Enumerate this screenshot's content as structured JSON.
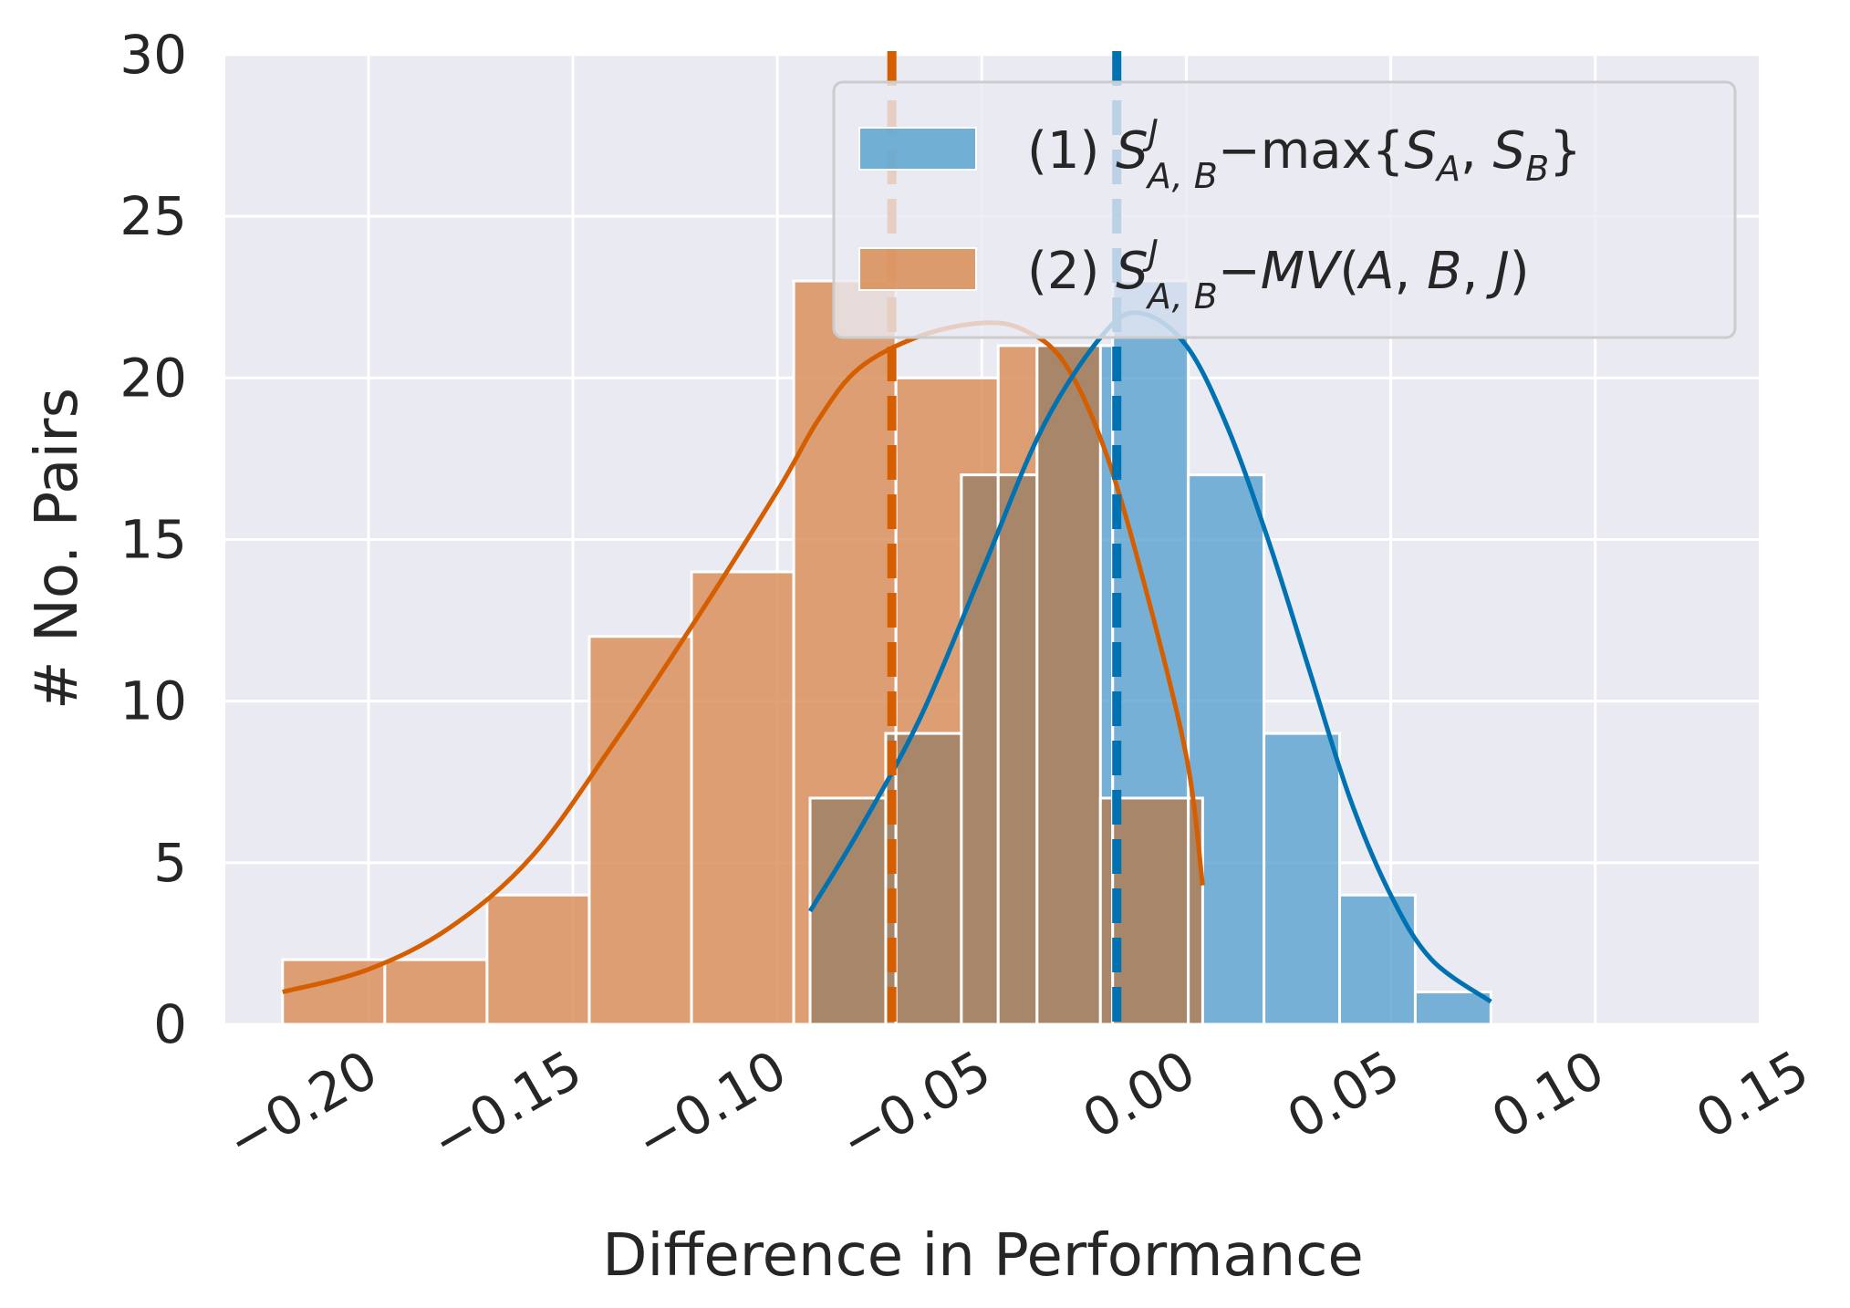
{
  "colors": {
    "plot_bg": "#eaeaf2",
    "grid": "#ffffff",
    "series1": "#0072b2",
    "series1_fill": "#5da4cf",
    "series2": "#d55e00",
    "series2_fill": "#d98d55",
    "overlap_fill": "#a8866a",
    "text": "#262626"
  },
  "chart_data": {
    "type": "histogram",
    "xlabel": "Difference in Performance",
    "ylabel": "# No. Pairs",
    "xlim": [
      -0.235,
      0.14
    ],
    "ylim": [
      0,
      30
    ],
    "xticks": [
      -0.2,
      -0.15,
      -0.1,
      -0.05,
      0.0,
      0.05,
      0.1,
      0.15
    ],
    "xtick_labels": [
      "−0.20",
      "−0.15",
      "−0.10",
      "−0.05",
      "0.00",
      "0.05",
      "0.10",
      "0.15"
    ],
    "yticks": [
      0,
      5,
      10,
      15,
      20,
      25,
      30
    ],
    "ytick_labels": [
      "0",
      "5",
      "10",
      "15",
      "20",
      "25",
      "30"
    ],
    "legend_position": "upper right",
    "grid": true,
    "series": [
      {
        "name": "(1) S^J_{A,B} − max{S_A, S_B}",
        "legend": {
          "number": "(1)",
          "main": "S",
          "sup": "J",
          "sub": "A, B",
          "rest": [
            {
              "t": "−max{",
              "style": "normal"
            },
            {
              "t": "S",
              "style": "italic"
            },
            {
              "t": "A",
              "style": "sub"
            },
            {
              "t": ", ",
              "style": "normal"
            },
            {
              "t": "S",
              "style": "italic"
            },
            {
              "t": "B",
              "style": "sub"
            },
            {
              "t": "}",
              "style": "normal"
            }
          ]
        },
        "bins": [
          {
            "x0": -0.092,
            "x1": -0.0735,
            "count": 7
          },
          {
            "x0": -0.0735,
            "x1": -0.055,
            "count": 9
          },
          {
            "x0": -0.055,
            "x1": -0.0365,
            "count": 17
          },
          {
            "x0": -0.0365,
            "x1": -0.018,
            "count": 21
          },
          {
            "x0": -0.018,
            "x1": 0.0005,
            "count": 23
          },
          {
            "x0": 0.0005,
            "x1": 0.019,
            "count": 17
          },
          {
            "x0": 0.019,
            "x1": 0.0375,
            "count": 9
          },
          {
            "x0": 0.0375,
            "x1": 0.056,
            "count": 4
          },
          {
            "x0": 0.056,
            "x1": 0.0745,
            "count": 1
          }
        ],
        "kde": [
          {
            "x": -0.092,
            "y": 3.5
          },
          {
            "x": -0.08,
            "y": 6.0
          },
          {
            "x": -0.065,
            "y": 9.5
          },
          {
            "x": -0.05,
            "y": 14.0
          },
          {
            "x": -0.035,
            "y": 18.5
          },
          {
            "x": -0.02,
            "y": 21.4
          },
          {
            "x": -0.011,
            "y": 22.0
          },
          {
            "x": 0.0,
            "y": 21.0
          },
          {
            "x": 0.01,
            "y": 18.5
          },
          {
            "x": 0.02,
            "y": 15.0
          },
          {
            "x": 0.03,
            "y": 11.0
          },
          {
            "x": 0.04,
            "y": 7.0
          },
          {
            "x": 0.05,
            "y": 4.0
          },
          {
            "x": 0.06,
            "y": 2.0
          },
          {
            "x": 0.0745,
            "y": 0.7
          }
        ],
        "mean": -0.017
      },
      {
        "name": "(2) S^J_{A,B} − MV(A,B,J)",
        "legend": {
          "number": "(2)",
          "main": "S",
          "sup": "J",
          "sub": "A, B",
          "rest": [
            {
              "t": "−",
              "style": "normal"
            },
            {
              "t": "MV",
              "style": "italic"
            },
            {
              "t": "(",
              "style": "normal"
            },
            {
              "t": "A",
              "style": "italic"
            },
            {
              "t": ", ",
              "style": "normal"
            },
            {
              "t": "B",
              "style": "italic"
            },
            {
              "t": ", ",
              "style": "normal"
            },
            {
              "t": "J",
              "style": "italic"
            },
            {
              "t": ")",
              "style": "normal"
            }
          ]
        },
        "bins": [
          {
            "x0": -0.221,
            "x1": -0.196,
            "count": 2
          },
          {
            "x0": -0.196,
            "x1": -0.171,
            "count": 2
          },
          {
            "x0": -0.171,
            "x1": -0.146,
            "count": 4
          },
          {
            "x0": -0.146,
            "x1": -0.121,
            "count": 12
          },
          {
            "x0": -0.121,
            "x1": -0.096,
            "count": 14
          },
          {
            "x0": -0.096,
            "x1": -0.071,
            "count": 23
          },
          {
            "x0": -0.071,
            "x1": -0.046,
            "count": 20
          },
          {
            "x0": -0.046,
            "x1": -0.021,
            "count": 21
          },
          {
            "x0": -0.021,
            "x1": 0.004,
            "count": 7
          }
        ],
        "kde": [
          {
            "x": -0.221,
            "y": 1.0
          },
          {
            "x": -0.2,
            "y": 1.7
          },
          {
            "x": -0.18,
            "y": 3.0
          },
          {
            "x": -0.16,
            "y": 5.2
          },
          {
            "x": -0.14,
            "y": 8.7
          },
          {
            "x": -0.12,
            "y": 12.5
          },
          {
            "x": -0.1,
            "y": 16.5
          },
          {
            "x": -0.09,
            "y": 18.7
          },
          {
            "x": -0.08,
            "y": 20.3
          },
          {
            "x": -0.065,
            "y": 21.3
          },
          {
            "x": -0.05,
            "y": 21.7
          },
          {
            "x": -0.04,
            "y": 21.5
          },
          {
            "x": -0.03,
            "y": 20.5
          },
          {
            "x": -0.02,
            "y": 17.8
          },
          {
            "x": -0.01,
            "y": 13.5
          },
          {
            "x": 0.0,
            "y": 8.3
          },
          {
            "x": 0.004,
            "y": 4.3
          }
        ],
        "mean": -0.072
      }
    ]
  }
}
